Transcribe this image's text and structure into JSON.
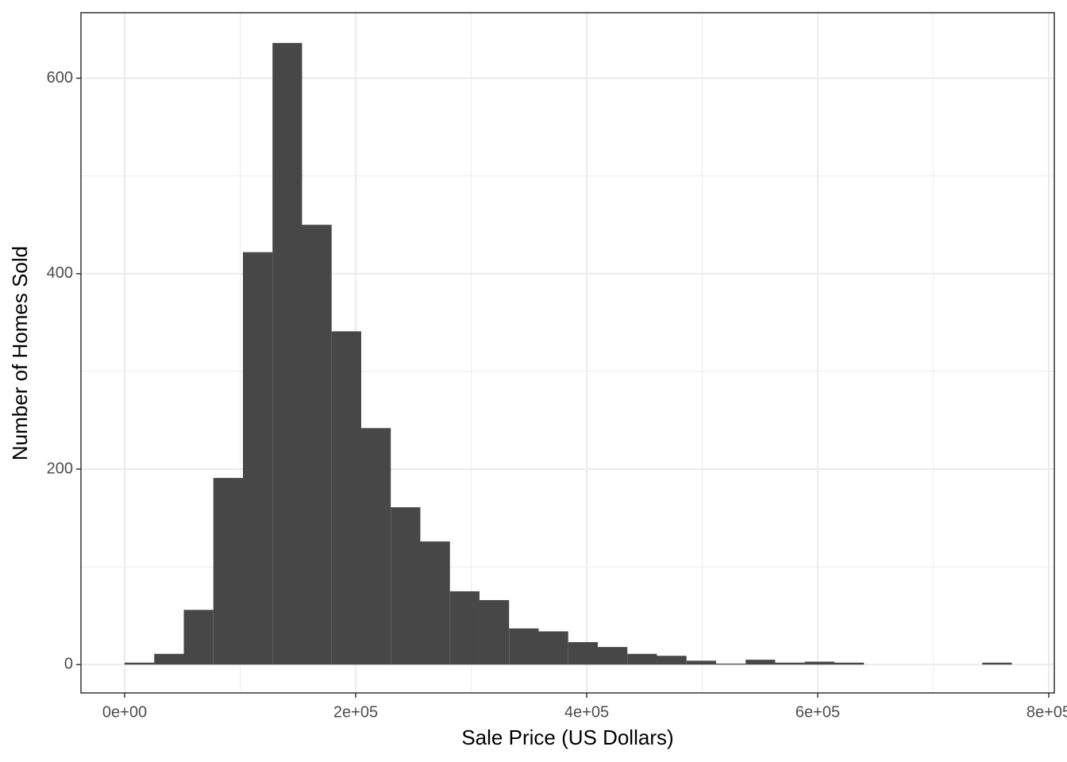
{
  "chart_data": {
    "type": "histogram",
    "x_label": "Sale Price (US Dollars)",
    "y_label": "Number of Homes Sold",
    "bins": [
      0,
      25600,
      51200,
      76800,
      102400,
      128000,
      153600,
      179200,
      204800,
      230400,
      256000,
      281600,
      307200,
      332800,
      358400,
      384000,
      409600,
      435200,
      460800,
      486400,
      512000,
      537600,
      563200,
      588800,
      614400,
      640000,
      665600,
      691200,
      716800,
      742400,
      768000
    ],
    "values": [
      2,
      11,
      56,
      191,
      422,
      636,
      450,
      341,
      242,
      161,
      126,
      75,
      66,
      37,
      34,
      23,
      18,
      11,
      9,
      4,
      1,
      5,
      2,
      3,
      2,
      0,
      0,
      0,
      0,
      2
    ],
    "color": "#474747",
    "xlim": [
      -37800,
      804800
    ],
    "ylim": [
      -29,
      667
    ],
    "xticks": [
      {
        "value": 0,
        "label": "0e+00"
      },
      {
        "value": 200000,
        "label": "2e+05"
      },
      {
        "value": 400000,
        "label": "4e+05"
      },
      {
        "value": 600000,
        "label": "6e+05"
      },
      {
        "value": 800000,
        "label": "8e+05"
      }
    ],
    "yticks": [
      0,
      200,
      400,
      600
    ],
    "x_minor_grid": [
      100000,
      300000,
      500000,
      700000
    ],
    "y_minor_grid": [
      100,
      300,
      500
    ],
    "grid": true
  }
}
